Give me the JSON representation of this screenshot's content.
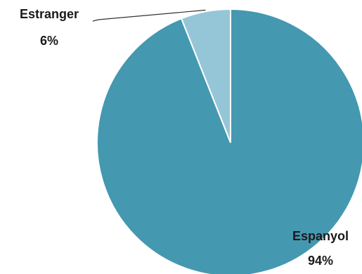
{
  "chart_data": {
    "type": "pie",
    "title": "",
    "slices": [
      {
        "name": "Espanyol",
        "value": 94,
        "label": "94%",
        "color": "#4498b0"
      },
      {
        "name": "Estranger",
        "value": 6,
        "label": "6%",
        "color": "#95c6d8"
      }
    ],
    "start_angle": "12 o'clock",
    "direction": "clockwise",
    "legend": "none",
    "leader_line_color": "#333333"
  }
}
